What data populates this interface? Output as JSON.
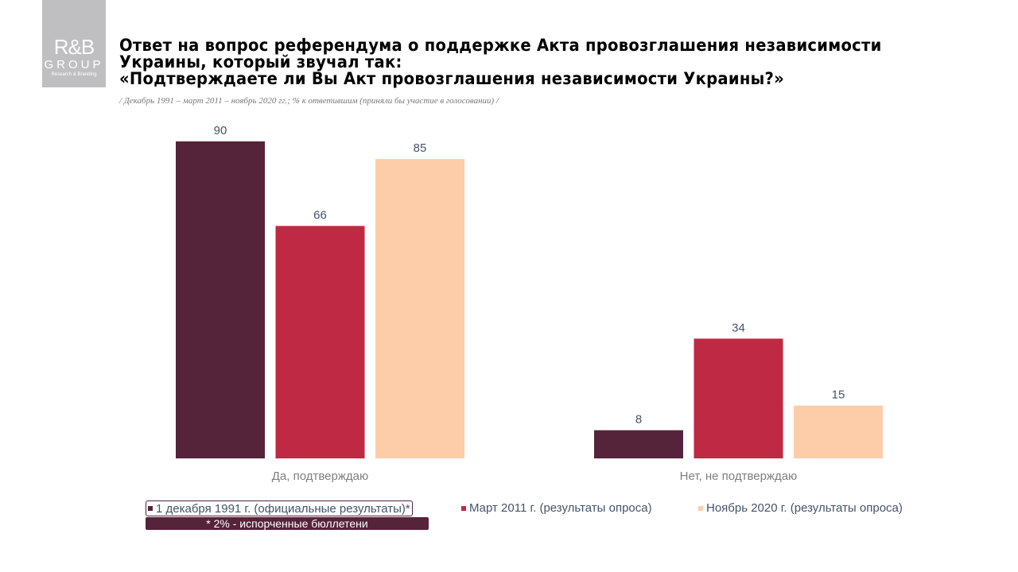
{
  "logo": {
    "line1": "R&B",
    "line2": "GROUP",
    "line3": "Research & Branding"
  },
  "title": [
    "Ответ на вопрос референдума о поддержке Акта провозглашения независимости",
    "Украины, который звучал так:",
    "«Подтверждаете ли Вы Акт провозглашения независимости Украины?»"
  ],
  "subtitle": "/ Декабрь 1991 – март 2011 – ноябрь 2020 гг.; % к ответившим (приняли бы участие в голосовании) /",
  "footnote": "* 2% - испорченные  бюллетени",
  "chart_data": {
    "type": "bar",
    "categories": [
      "Да, подтверждаю",
      "Нет, не подтверждаю"
    ],
    "series": [
      {
        "name": "1 декабря 1991 г. (официальные  результаты)*",
        "values": [
          90,
          8
        ],
        "color": "#55233a"
      },
      {
        "name": "Март 2011 г. (результаты опроса)",
        "values": [
          66,
          34
        ],
        "color": "#c02943"
      },
      {
        "name": "Ноябрь 2020 г. (результаты опроса)",
        "values": [
          85,
          15
        ],
        "color": "#fdcdaa"
      }
    ],
    "ylim": [
      0,
      90
    ],
    "grid": false,
    "legend": "bottom",
    "data_labels": true
  }
}
